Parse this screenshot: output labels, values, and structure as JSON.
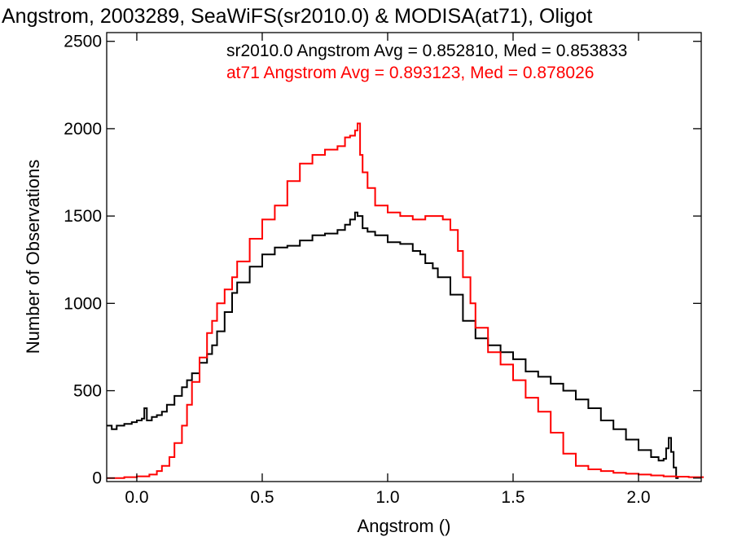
{
  "chart_data": {
    "type": "line",
    "style": "step-histogram",
    "title": "Angstrom, 2003289, SeaWiFS(sr2010.0) & MODISA(at71), Oligot",
    "xlabel": "Angstrom ()",
    "ylabel": "Number of Observations",
    "xlim": [
      -0.12,
      2.25
    ],
    "ylim": [
      -20,
      2550
    ],
    "xticks": [
      0.0,
      0.5,
      1.0,
      1.5,
      2.0
    ],
    "xtick_labels": [
      "0.0",
      "0.5",
      "1.0",
      "1.5",
      "2.0"
    ],
    "yticks": [
      0,
      500,
      1000,
      1500,
      2000,
      2500
    ],
    "ytick_labels": [
      "0",
      "500",
      "1000",
      "1500",
      "2000",
      "2500"
    ],
    "grid": false,
    "annotations": [
      {
        "text": "sr2010.0 Angstrom Avg = 0.852810, Med = 0.853833",
        "color": "#000000"
      },
      {
        "text": "at71 Angstrom Avg = 0.893123, Med = 0.878026",
        "color": "#ff0000"
      }
    ],
    "series": [
      {
        "color": "#000000",
        "x": [
          -0.12,
          -0.1,
          -0.08,
          -0.05,
          -0.02,
          0.0,
          0.02,
          0.03,
          0.04,
          0.05,
          0.06,
          0.08,
          0.1,
          0.12,
          0.15,
          0.18,
          0.2,
          0.22,
          0.25,
          0.28,
          0.3,
          0.32,
          0.35,
          0.38,
          0.4,
          0.45,
          0.5,
          0.55,
          0.6,
          0.65,
          0.7,
          0.75,
          0.8,
          0.83,
          0.85,
          0.87,
          0.88,
          0.9,
          0.92,
          0.95,
          1.0,
          1.05,
          1.1,
          1.13,
          1.15,
          1.18,
          1.2,
          1.25,
          1.3,
          1.35,
          1.4,
          1.45,
          1.5,
          1.55,
          1.6,
          1.65,
          1.7,
          1.75,
          1.8,
          1.85,
          1.9,
          1.95,
          2.0,
          2.05,
          2.08,
          2.1,
          2.11,
          2.12,
          2.13,
          2.14,
          2.15
        ],
        "values": [
          300,
          280,
          300,
          310,
          320,
          330,
          340,
          400,
          330,
          330,
          350,
          360,
          380,
          420,
          470,
          520,
          560,
          600,
          660,
          710,
          760,
          840,
          950,
          1060,
          1120,
          1210,
          1280,
          1320,
          1330,
          1360,
          1390,
          1400,
          1420,
          1450,
          1480,
          1520,
          1500,
          1430,
          1410,
          1390,
          1350,
          1340,
          1300,
          1280,
          1230,
          1200,
          1150,
          1050,
          900,
          800,
          760,
          720,
          680,
          610,
          580,
          540,
          500,
          450,
          400,
          330,
          280,
          220,
          160,
          120,
          100,
          110,
          170,
          230,
          150,
          60,
          0
        ]
      },
      {
        "color": "#ff0000",
        "x": [
          -0.12,
          -0.05,
          0.0,
          0.05,
          0.08,
          0.1,
          0.13,
          0.15,
          0.18,
          0.2,
          0.22,
          0.25,
          0.28,
          0.3,
          0.32,
          0.35,
          0.38,
          0.4,
          0.45,
          0.5,
          0.55,
          0.6,
          0.65,
          0.7,
          0.75,
          0.8,
          0.83,
          0.85,
          0.87,
          0.88,
          0.89,
          0.9,
          0.92,
          0.95,
          1.0,
          1.05,
          1.1,
          1.15,
          1.2,
          1.22,
          1.25,
          1.28,
          1.3,
          1.33,
          1.35,
          1.4,
          1.45,
          1.5,
          1.55,
          1.6,
          1.65,
          1.7,
          1.75,
          1.8,
          1.85,
          1.9,
          1.95,
          2.0,
          2.05,
          2.1,
          2.15,
          2.2,
          2.25
        ],
        "values": [
          0,
          5,
          10,
          20,
          40,
          70,
          120,
          200,
          300,
          420,
          550,
          690,
          830,
          900,
          1000,
          1080,
          1150,
          1240,
          1370,
          1480,
          1560,
          1700,
          1800,
          1850,
          1880,
          1900,
          1950,
          1960,
          1990,
          2030,
          1850,
          1750,
          1660,
          1560,
          1520,
          1500,
          1480,
          1500,
          1500,
          1480,
          1420,
          1300,
          1150,
          1000,
          860,
          720,
          650,
          560,
          460,
          380,
          260,
          140,
          70,
          50,
          40,
          30,
          25,
          20,
          15,
          10,
          8,
          5,
          5
        ]
      }
    ]
  }
}
